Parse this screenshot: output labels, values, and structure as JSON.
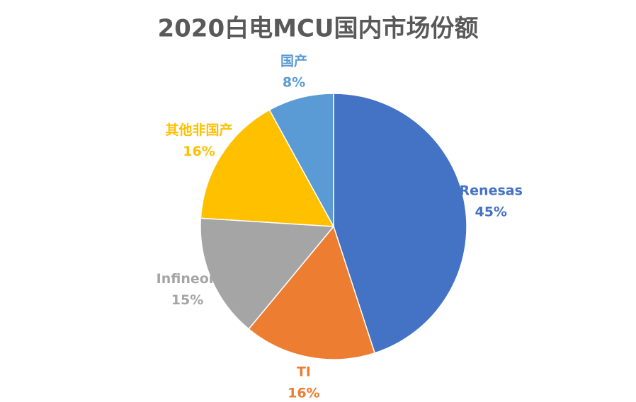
{
  "chart_data": {
    "type": "pie",
    "title": "2020白电MCU国内市场份额",
    "categories": [
      "Renesas",
      "TI",
      "Infineon",
      "其他非国产",
      "国产"
    ],
    "values": [
      45,
      16,
      15,
      16,
      8
    ],
    "value_labels": [
      "45%",
      "16%",
      "15%",
      "16%",
      "8%"
    ],
    "colors": [
      "#4472c4",
      "#ed7d31",
      "#a5a5a5",
      "#ffc000",
      "#5b9bd5"
    ]
  }
}
